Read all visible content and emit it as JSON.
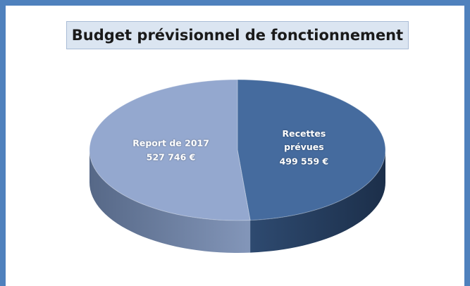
{
  "chart_data": {
    "type": "pie",
    "title": "Budget prévisionnel de fonctionnement",
    "categories": [
      "Recettes prévues",
      "Report de 2017"
    ],
    "values": [
      499559,
      527746
    ],
    "value_labels": [
      "499 559 €",
      "527 746 €"
    ],
    "colors": [
      "#456b9e",
      "#94a8cf"
    ]
  }
}
